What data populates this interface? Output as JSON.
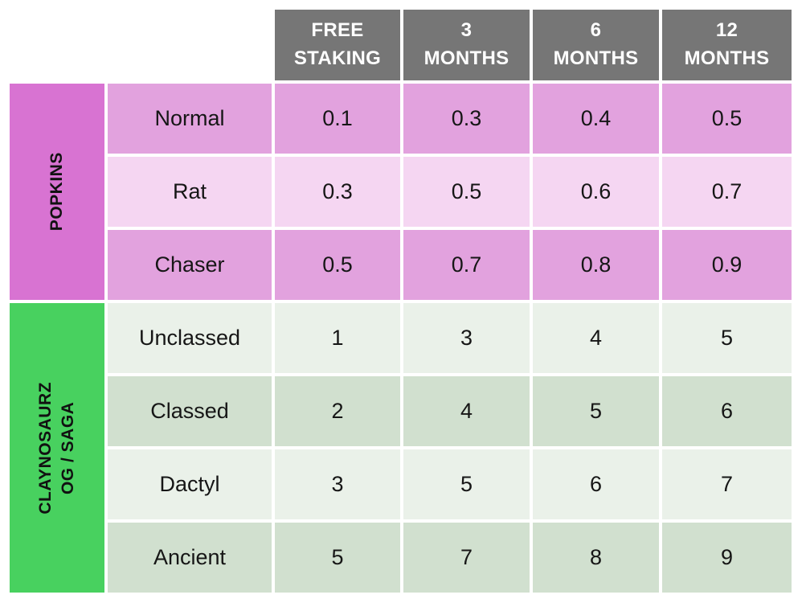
{
  "colors": {
    "header_bg": "#767676",
    "header_text": "#FFFFFF",
    "popkins_label_bg": "#D873D2",
    "popkins_row_bg": "#E2A2DE",
    "popkins_row_alt_bg": "#F5D6F2",
    "claynosaurz_label_bg": "#48D15F",
    "claynosaurz_row_bg": "#EAF1E9",
    "claynosaurz_row_alt_bg": "#D1E0CF",
    "body_text": "#161616"
  },
  "header": {
    "cells": [
      "FREE\nSTAKING",
      "3\nMONTHS",
      "6\nMONTHS",
      "12\nMONTHS"
    ]
  },
  "sections": [
    {
      "label": "POPKINS",
      "rows": [
        {
          "label": "Normal",
          "values": [
            "0.1",
            "0.3",
            "0.4",
            "0.5"
          ]
        },
        {
          "label": "Rat",
          "values": [
            "0.3",
            "0.5",
            "0.6",
            "0.7"
          ]
        },
        {
          "label": "Chaser",
          "values": [
            "0.5",
            "0.7",
            "0.8",
            "0.9"
          ]
        }
      ]
    },
    {
      "label": "CLAYNOSAURZ\nOG / SAGA",
      "rows": [
        {
          "label": "Unclassed",
          "values": [
            "1",
            "3",
            "4",
            "5"
          ]
        },
        {
          "label": "Classed",
          "values": [
            "2",
            "4",
            "5",
            "6"
          ]
        },
        {
          "label": "Dactyl",
          "values": [
            "3",
            "5",
            "6",
            "7"
          ]
        },
        {
          "label": "Ancient",
          "values": [
            "5",
            "7",
            "8",
            "9"
          ]
        }
      ]
    }
  ],
  "chart_data": {
    "type": "table",
    "title": "",
    "columns": [
      "FREE STAKING",
      "3 MONTHS",
      "6 MONTHS",
      "12 MONTHS"
    ],
    "row_groups": [
      {
        "group": "POPKINS",
        "rows": [
          {
            "label": "Normal",
            "values": [
              0.1,
              0.3,
              0.4,
              0.5
            ]
          },
          {
            "label": "Rat",
            "values": [
              0.3,
              0.5,
              0.6,
              0.7
            ]
          },
          {
            "label": "Chaser",
            "values": [
              0.5,
              0.7,
              0.8,
              0.9
            ]
          }
        ]
      },
      {
        "group": "CLAYNOSAURZ OG / SAGA",
        "rows": [
          {
            "label": "Unclassed",
            "values": [
              1,
              3,
              4,
              5
            ]
          },
          {
            "label": "Classed",
            "values": [
              2,
              4,
              5,
              6
            ]
          },
          {
            "label": "Dactyl",
            "values": [
              3,
              5,
              6,
              7
            ]
          },
          {
            "label": "Ancient",
            "values": [
              5,
              7,
              8,
              9
            ]
          }
        ]
      }
    ]
  }
}
